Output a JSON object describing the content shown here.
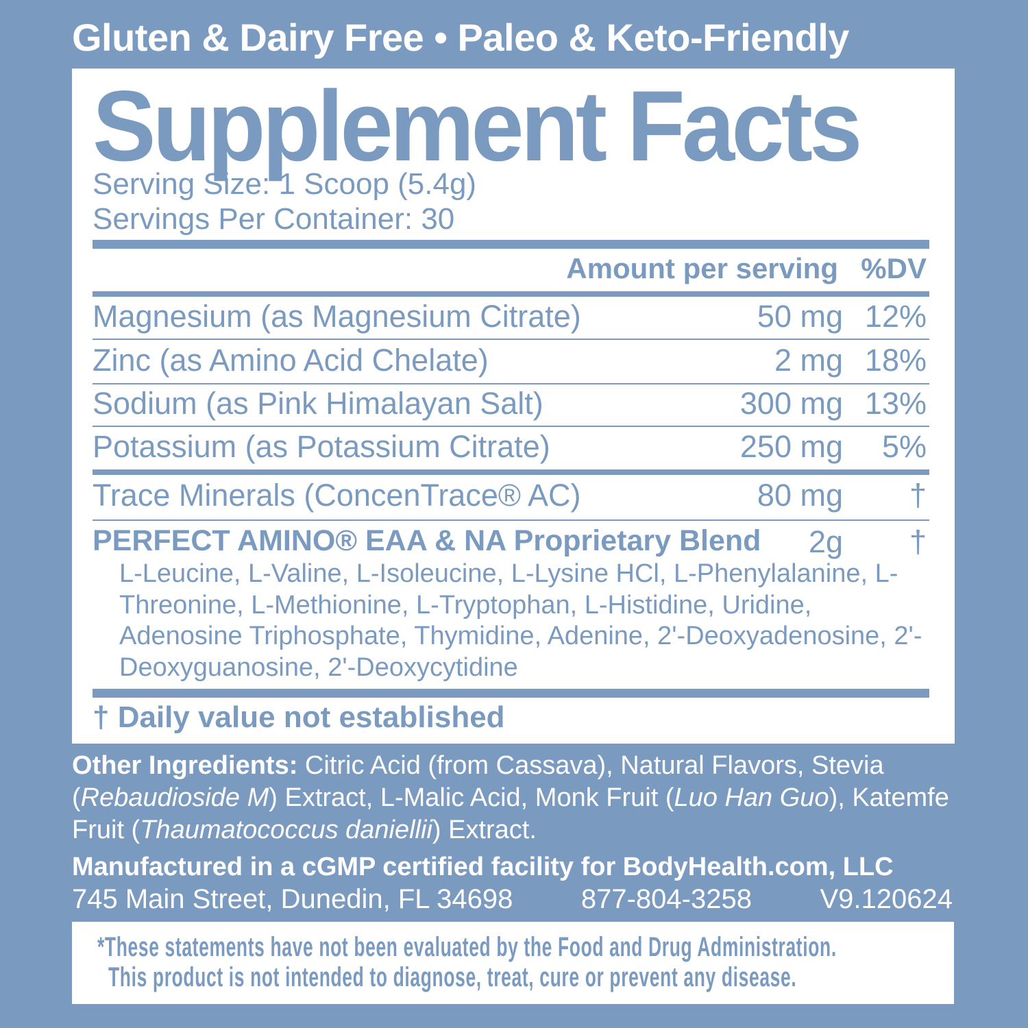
{
  "top_banner": "Gluten & Dairy Free • Paleo & Keto-Friendly",
  "title": "Supplement Facts",
  "serving_size": "Serving Size: 1 Scoop (5.4g)",
  "servings_per_container": "Servings Per Container: 30",
  "header": {
    "amount": "Amount per serving",
    "dv": "%DV"
  },
  "rows": [
    {
      "name": "Magnesium (as Magnesium Citrate)",
      "amount": "50 mg",
      "dv": "12%"
    },
    {
      "name": "Zinc (as Amino Acid Chelate)",
      "amount": "2 mg",
      "dv": "18%"
    },
    {
      "name": "Sodium (as Pink Himalayan Salt)",
      "amount": "300 mg",
      "dv": "13%"
    },
    {
      "name": "Potassium (as Potassium Citrate)",
      "amount": "250 mg",
      "dv": "5%"
    },
    {
      "name": "Trace Minerals (ConcenTrace® AC)",
      "amount": "80 mg",
      "dv": "†"
    }
  ],
  "blend": {
    "name": "PERFECT AMINO® EAA & NA Proprietary Blend",
    "amount": "2g",
    "dv": "†",
    "ingredients": "L-Leucine, L-Valine, L-Isoleucine, L-Lysine HCl, L-Phenylalanine, L-Threonine, L-Methionine, L-Tryptophan, L-Histidine, Uridine, Adenosine Triphosphate, Thymidine, Adenine, 2'-Deoxyadenosine, 2'-Deoxyguanosine, 2'-Deoxycytidine"
  },
  "footnote": "† Daily value not established",
  "other": {
    "label": "Other Ingredients:",
    "text1": " Citric Acid (from Cassava), Natural Flavors, Stevia (",
    "i1": "Rebaudioside M",
    "text2": ") Extract, L-Malic Acid, Monk Fruit (",
    "i2": "Luo Han Guo",
    "text3": "), Katemfe Fruit (",
    "i3": "Thaumatococcus daniellii",
    "text4": ") Extract."
  },
  "manufacturer": "Manufactured in a cGMP certified facility for  BodyHealth.com, LLC",
  "address": "745 Main Street, Dunedin, FL 34698",
  "phone": "877-804-3258",
  "version": "V9.120624",
  "disclaimer": [
    "*These statements have not been evaluated by the Food and Drug Administration.",
    "This product is not intended to diagnose, treat, cure or prevent any disease."
  ],
  "colors": {
    "background": "#7a9ac0",
    "panel": "#ffffff"
  }
}
